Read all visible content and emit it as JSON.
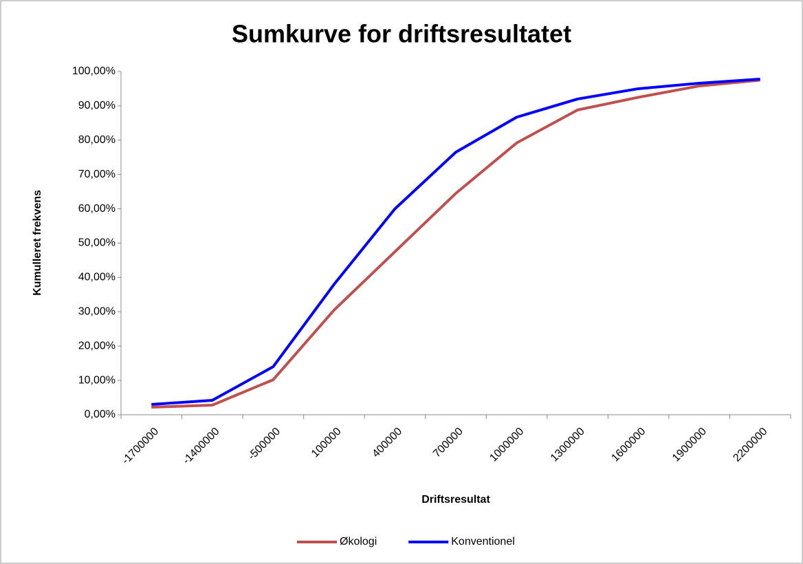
{
  "chart_data": {
    "type": "line",
    "title": "Sumkurve for driftsresultatet",
    "x_label": "Driftsresultat",
    "y_label": "Kumulleret frekvens",
    "categories": [
      "-1700000",
      "-1400000",
      "-500000",
      "100000",
      "400000",
      "700000",
      "1000000",
      "1300000",
      "1600000",
      "1900000",
      "2200000"
    ],
    "series": [
      {
        "name": "Økologi",
        "color": "#c0504d",
        "values": [
          2.2,
          2.8,
          10.2,
          30.5,
          47.5,
          64.5,
          79.2,
          88.8,
          92.5,
          95.8,
          97.5
        ]
      },
      {
        "name": "Konventionel",
        "color": "#0000ff",
        "values": [
          3.0,
          4.2,
          14.0,
          38.0,
          60.0,
          76.5,
          86.7,
          92.0,
          95.0,
          96.6,
          97.8
        ]
      }
    ],
    "ylim": [
      0,
      100
    ],
    "yticks": [
      {
        "value": 0,
        "label": "0,00%"
      },
      {
        "value": 10,
        "label": "10,00%"
      },
      {
        "value": 20,
        "label": "20,00%"
      },
      {
        "value": 30,
        "label": "30,00%"
      },
      {
        "value": 40,
        "label": "40,00%"
      },
      {
        "value": 50,
        "label": "50,00%"
      },
      {
        "value": 60,
        "label": "60,00%"
      },
      {
        "value": 70,
        "label": "70,00%"
      },
      {
        "value": 80,
        "label": "80,00%"
      },
      {
        "value": 90,
        "label": "90,00%"
      },
      {
        "value": 100,
        "label": "100,00%"
      }
    ],
    "grid": false,
    "legend": "bottom"
  }
}
